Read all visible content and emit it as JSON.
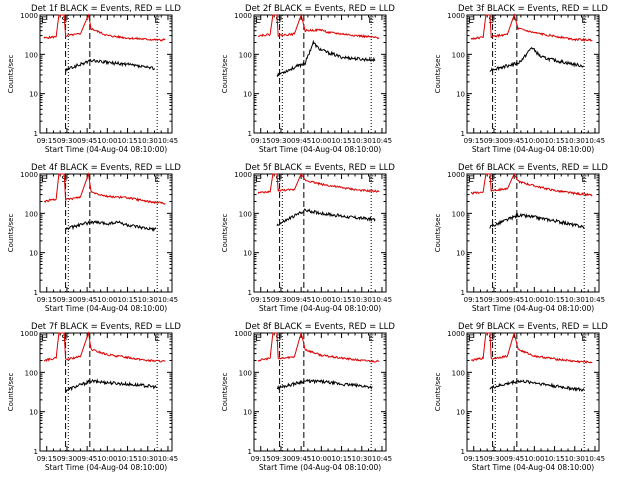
{
  "colors": {
    "events": "#000000",
    "lld": "#dd0000",
    "background": "#ffffff",
    "frame": "#000000"
  },
  "chart_data": [
    {
      "type": "line",
      "title": "Det 1f BLACK = Events, RED = LLD",
      "xlabel": "Start Time (04-Aug-04 08:10:00)",
      "ylabel": "Counts/sec",
      "x_ticks": [
        "09:15",
        "09:30",
        "09:45",
        "10:00",
        "10:15",
        "10:30",
        "10:45"
      ],
      "y_ticks": [
        "1",
        "10",
        "100",
        "1000"
      ],
      "y_scale": "log",
      "ylim": [
        1,
        1000
      ],
      "markers": [
        "E",
        "S",
        "E"
      ],
      "series": [
        {
          "name": "LLD",
          "points": [
            [
              "09:13",
              260
            ],
            [
              "09:22",
              280
            ],
            [
              "09:24",
              1000
            ],
            [
              "09:28",
              1000
            ],
            [
              "09:29",
              290
            ],
            [
              "09:30",
              300
            ],
            [
              "09:40",
              330
            ],
            [
              "09:46",
              1000
            ],
            [
              "09:48",
              450
            ],
            [
              "10:00",
              300
            ],
            [
              "10:15",
              260
            ],
            [
              "10:30",
              240
            ],
            [
              "10:40",
              230
            ],
            [
              "10:43",
              240
            ]
          ]
        },
        {
          "name": "Events",
          "points": [
            [
              "09:29",
              40
            ],
            [
              "09:48",
              70
            ],
            [
              "10:00",
              62
            ],
            [
              "10:15",
              55
            ],
            [
              "10:30",
              46
            ],
            [
              "10:35",
              44
            ]
          ]
        }
      ]
    },
    {
      "type": "line",
      "title": "Det 2f BLACK = Events, RED = LLD",
      "xlabel": "Start Time (04-Aug-04 08:10:00)",
      "ylabel": "Counts/sec",
      "x_ticks": [
        "09:15",
        "09:30",
        "09:45",
        "10:00",
        "10:15",
        "10:30",
        "10:45"
      ],
      "y_ticks": [
        "1",
        "10",
        "100",
        "1000"
      ],
      "y_scale": "log",
      "ylim": [
        1,
        1000
      ],
      "markers": [
        "E",
        "S",
        "E"
      ],
      "series": [
        {
          "name": "LLD",
          "points": [
            [
              "09:13",
              300
            ],
            [
              "09:22",
              320
            ],
            [
              "09:24",
              1000
            ],
            [
              "09:27",
              1000
            ],
            [
              "09:28",
              300
            ],
            [
              "09:40",
              330
            ],
            [
              "09:45",
              1000
            ],
            [
              "09:48",
              400
            ],
            [
              "10:00",
              420
            ],
            [
              "10:05",
              360
            ],
            [
              "10:15",
              330
            ],
            [
              "10:30",
              290
            ],
            [
              "10:43",
              260
            ]
          ]
        },
        {
          "name": "Events",
          "points": [
            [
              "09:27",
              30
            ],
            [
              "09:48",
              60
            ],
            [
              "09:54",
              200
            ],
            [
              "09:58",
              140
            ],
            [
              "10:05",
              110
            ],
            [
              "10:15",
              85
            ],
            [
              "10:30",
              75
            ],
            [
              "10:40",
              72
            ]
          ]
        }
      ]
    },
    {
      "type": "line",
      "title": "Det 3f BLACK = Events, RED = LLD",
      "xlabel": "Start Time (04-Aug-04 08:10:00)",
      "ylabel": "Counts/sec",
      "x_ticks": [
        "09:15",
        "09:30",
        "09:45",
        "10:00",
        "10:15",
        "10:30",
        "10:45"
      ],
      "y_ticks": [
        "1",
        "10",
        "100",
        "1000"
      ],
      "y_scale": "log",
      "ylim": [
        1,
        1000
      ],
      "markers": [
        "E",
        "S",
        "E"
      ],
      "series": [
        {
          "name": "LLD",
          "points": [
            [
              "09:13",
              250
            ],
            [
              "09:22",
              270
            ],
            [
              "09:24",
              1000
            ],
            [
              "09:27",
              1000
            ],
            [
              "09:28",
              280
            ],
            [
              "09:40",
              320
            ],
            [
              "09:45",
              1000
            ],
            [
              "09:48",
              450
            ],
            [
              "10:00",
              350
            ],
            [
              "10:15",
              290
            ],
            [
              "10:30",
              240
            ],
            [
              "10:43",
              230
            ]
          ]
        },
        {
          "name": "Events",
          "points": [
            [
              "09:27",
              40
            ],
            [
              "09:48",
              60
            ],
            [
              "09:52",
              80
            ],
            [
              "09:58",
              150
            ],
            [
              "10:05",
              85
            ],
            [
              "10:15",
              70
            ],
            [
              "10:30",
              55
            ],
            [
              "10:37",
              50
            ]
          ]
        }
      ]
    },
    {
      "type": "line",
      "title": "Det 4f BLACK = Events, RED = LLD",
      "xlabel": "Start Time (04-Aug-04 08:10:00)",
      "ylabel": "Counts/sec",
      "x_ticks": [
        "09:15",
        "09:30",
        "09:45",
        "10:00",
        "10:15",
        "10:30",
        "10:45"
      ],
      "y_ticks": [
        "1",
        "10",
        "100",
        "1000"
      ],
      "y_scale": "log",
      "ylim": [
        1,
        1000
      ],
      "markers": [
        "E",
        "S",
        "E"
      ],
      "series": [
        {
          "name": "LLD",
          "points": [
            [
              "09:13",
              200
            ],
            [
              "09:22",
              230
            ],
            [
              "09:24",
              1000
            ],
            [
              "09:28",
              1000
            ],
            [
              "09:29",
              220
            ],
            [
              "09:40",
              260
            ],
            [
              "09:46",
              1000
            ],
            [
              "09:48",
              350
            ],
            [
              "10:00",
              270
            ],
            [
              "10:15",
              250
            ],
            [
              "10:30",
              200
            ],
            [
              "10:43",
              180
            ]
          ]
        },
        {
          "name": "Events",
          "points": [
            [
              "09:29",
              40
            ],
            [
              "09:48",
              60
            ],
            [
              "10:00",
              55
            ],
            [
              "10:08",
              60
            ],
            [
              "10:15",
              50
            ],
            [
              "10:30",
              40
            ],
            [
              "10:36",
              40
            ]
          ]
        }
      ]
    },
    {
      "type": "line",
      "title": "Det 5f BLACK = Events, RED = LLD",
      "xlabel": "Start Time (04-Aug-04 08:10:00)",
      "ylabel": "Counts/sec",
      "x_ticks": [
        "09:15",
        "09:30",
        "09:45",
        "10:00",
        "10:15",
        "10:30",
        "10:45"
      ],
      "y_ticks": [
        "1",
        "10",
        "100",
        "1000"
      ],
      "y_scale": "log",
      "ylim": [
        1,
        1000
      ],
      "markers": [
        "E",
        "S",
        "E"
      ],
      "series": [
        {
          "name": "LLD",
          "points": [
            [
              "09:13",
              330
            ],
            [
              "09:22",
              350
            ],
            [
              "09:24",
              1000
            ],
            [
              "09:27",
              1000
            ],
            [
              "09:28",
              380
            ],
            [
              "09:40",
              400
            ],
            [
              "09:45",
              1000
            ],
            [
              "09:48",
              700
            ],
            [
              "10:00",
              550
            ],
            [
              "10:15",
              450
            ],
            [
              "10:30",
              380
            ],
            [
              "10:43",
              360
            ]
          ]
        },
        {
          "name": "Events",
          "points": [
            [
              "09:27",
              50
            ],
            [
              "09:48",
              120
            ],
            [
              "10:00",
              100
            ],
            [
              "10:15",
              85
            ],
            [
              "10:30",
              75
            ],
            [
              "10:40",
              70
            ]
          ]
        }
      ]
    },
    {
      "type": "line",
      "title": "Det 6f BLACK = Events, RED = LLD",
      "xlabel": "Start Time (04-Aug-04 08:10:00)",
      "ylabel": "Counts/sec",
      "x_ticks": [
        "09:15",
        "09:30",
        "09:45",
        "10:00",
        "10:15",
        "10:30",
        "10:45"
      ],
      "y_ticks": [
        "1",
        "10",
        "100",
        "1000"
      ],
      "y_scale": "log",
      "ylim": [
        1,
        1000
      ],
      "markers": [
        "E",
        "S",
        "E"
      ],
      "series": [
        {
          "name": "LLD",
          "points": [
            [
              "09:13",
              320
            ],
            [
              "09:22",
              350
            ],
            [
              "09:24",
              1000
            ],
            [
              "09:27",
              1000
            ],
            [
              "09:28",
              380
            ],
            [
              "09:40",
              420
            ],
            [
              "09:45",
              1000
            ],
            [
              "09:48",
              650
            ],
            [
              "10:00",
              500
            ],
            [
              "10:15",
              380
            ],
            [
              "10:30",
              320
            ],
            [
              "10:43",
              290
            ]
          ]
        },
        {
          "name": "Events",
          "points": [
            [
              "09:27",
              45
            ],
            [
              "09:48",
              90
            ],
            [
              "10:00",
              80
            ],
            [
              "10:15",
              65
            ],
            [
              "10:30",
              50
            ],
            [
              "10:37",
              45
            ]
          ]
        }
      ]
    },
    {
      "type": "line",
      "title": "Det 7f BLACK = Events, RED = LLD",
      "xlabel": "Start Time (04-Aug-04 08:10:00)",
      "ylabel": "Counts/sec",
      "x_ticks": [
        "09:15",
        "09:30",
        "09:45",
        "10:00",
        "10:15",
        "10:30",
        "10:45"
      ],
      "y_ticks": [
        "1",
        "10",
        "100",
        "1000"
      ],
      "y_scale": "log",
      "ylim": [
        1,
        1000
      ],
      "markers": [
        "E",
        "S",
        "E"
      ],
      "series": [
        {
          "name": "LLD",
          "points": [
            [
              "09:13",
              200
            ],
            [
              "09:22",
              230
            ],
            [
              "09:24",
              1000
            ],
            [
              "09:28",
              1000
            ],
            [
              "09:29",
              210
            ],
            [
              "09:40",
              250
            ],
            [
              "09:46",
              1000
            ],
            [
              "09:48",
              380
            ],
            [
              "10:00",
              280
            ],
            [
              "10:15",
              240
            ],
            [
              "10:30",
              200
            ],
            [
              "10:43",
              190
            ]
          ]
        },
        {
          "name": "Events",
          "points": [
            [
              "09:29",
              35
            ],
            [
              "09:48",
              60
            ],
            [
              "10:00",
              55
            ],
            [
              "10:15",
              50
            ],
            [
              "10:30",
              45
            ],
            [
              "10:37",
              42
            ]
          ]
        }
      ]
    },
    {
      "type": "line",
      "title": "Det 8f BLACK = Events, RED = LLD",
      "xlabel": "Start Time (04-Aug-04 08:10:00)",
      "ylabel": "Counts/sec",
      "x_ticks": [
        "09:15",
        "09:30",
        "09:45",
        "10:00",
        "10:15",
        "10:30",
        "10:45"
      ],
      "y_ticks": [
        "1",
        "10",
        "100",
        "1000"
      ],
      "y_scale": "log",
      "ylim": [
        1,
        1000
      ],
      "markers": [
        "E",
        "S",
        "E"
      ],
      "series": [
        {
          "name": "LLD",
          "points": [
            [
              "09:13",
              200
            ],
            [
              "09:22",
              230
            ],
            [
              "09:24",
              1000
            ],
            [
              "09:27",
              1000
            ],
            [
              "09:28",
              220
            ],
            [
              "09:40",
              250
            ],
            [
              "09:45",
              1000
            ],
            [
              "09:48",
              380
            ],
            [
              "10:00",
              270
            ],
            [
              "10:15",
              230
            ],
            [
              "10:30",
              200
            ],
            [
              "10:43",
              190
            ]
          ]
        },
        {
          "name": "Events",
          "points": [
            [
              "09:27",
              40
            ],
            [
              "09:48",
              60
            ],
            [
              "10:00",
              58
            ],
            [
              "10:15",
              50
            ],
            [
              "10:30",
              45
            ],
            [
              "10:38",
              42
            ]
          ]
        }
      ]
    },
    {
      "type": "line",
      "title": "Det 9f BLACK = Events, RED = LLD",
      "xlabel": "Start Time (04-Aug-04 08:10:00)",
      "ylabel": "Counts/sec",
      "x_ticks": [
        "09:15",
        "09:30",
        "09:45",
        "10:00",
        "10:15",
        "10:30",
        "10:45"
      ],
      "y_ticks": [
        "1",
        "10",
        "100",
        "1000"
      ],
      "y_scale": "log",
      "ylim": [
        1,
        1000
      ],
      "markers": [
        "E",
        "S",
        "E"
      ],
      "series": [
        {
          "name": "LLD",
          "points": [
            [
              "09:13",
              200
            ],
            [
              "09:22",
              230
            ],
            [
              "09:24",
              1000
            ],
            [
              "09:27",
              1000
            ],
            [
              "09:28",
              220
            ],
            [
              "09:40",
              260
            ],
            [
              "09:45",
              1000
            ],
            [
              "09:48",
              380
            ],
            [
              "10:00",
              260
            ],
            [
              "10:15",
              220
            ],
            [
              "10:30",
              190
            ],
            [
              "10:43",
              180
            ]
          ]
        },
        {
          "name": "Events",
          "points": [
            [
              "09:27",
              40
            ],
            [
              "09:48",
              60
            ],
            [
              "10:00",
              55
            ],
            [
              "10:15",
              45
            ],
            [
              "10:30",
              38
            ],
            [
              "10:37",
              35
            ]
          ]
        }
      ]
    }
  ]
}
